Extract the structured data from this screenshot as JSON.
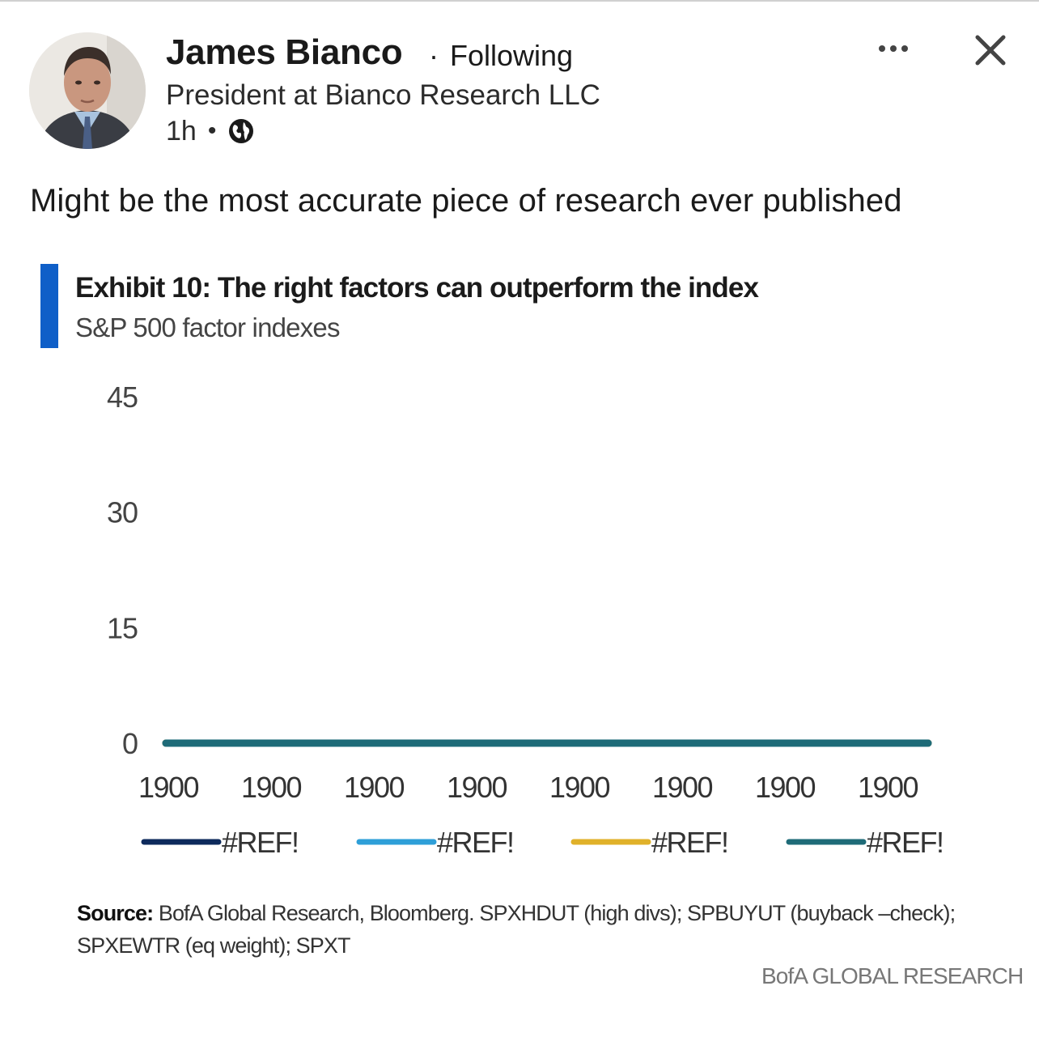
{
  "post": {
    "author": {
      "name": "James Bianco",
      "follow_status": "Following",
      "headline": "President at Bianco Research LLC",
      "time_ago": "1h",
      "visibility_icon": "globe-icon"
    },
    "header_actions": {
      "more_icon": "more-horizontal-icon",
      "close_icon": "close-icon"
    },
    "text": "Might be the most accurate piece of research ever published"
  },
  "exhibit": {
    "title": "Exhibit 10: The right factors can outperform the index",
    "subtitle": "S&P 500 factor indexes",
    "source_label": "Source:",
    "source_text": " BofA Global Research, Bloomberg. SPXHDUT (high divs); SPBUYUT (buyback –check); SPXEWTR (eq weight); SPXT",
    "brand": "BofA GLOBAL RESEARCH",
    "accent_color": "#0f5fc8"
  },
  "chart_data": {
    "type": "line",
    "title": "Exhibit 10: The right factors can outperform the index",
    "subtitle": "S&P 500 factor indexes",
    "x": [
      "1900",
      "1900",
      "1900",
      "1900",
      "1900",
      "1900",
      "1900",
      "1900"
    ],
    "y_ticks": [
      0,
      15,
      30,
      45
    ],
    "ylim": [
      0,
      45
    ],
    "grid": false,
    "legend_position": "bottom",
    "series": [
      {
        "name": "#REF!",
        "color": "#0d2a5c",
        "values": [
          0,
          0,
          0,
          0,
          0,
          0,
          0,
          0
        ]
      },
      {
        "name": "#REF!",
        "color": "#2e9fd8",
        "values": [
          0,
          0,
          0,
          0,
          0,
          0,
          0,
          0
        ]
      },
      {
        "name": "#REF!",
        "color": "#e0b12a",
        "values": [
          0,
          0,
          0,
          0,
          0,
          0,
          0,
          0
        ]
      },
      {
        "name": "#REF!",
        "color": "#1e6b78",
        "values": [
          0,
          0,
          0,
          0,
          0,
          0,
          0,
          0
        ]
      }
    ]
  }
}
